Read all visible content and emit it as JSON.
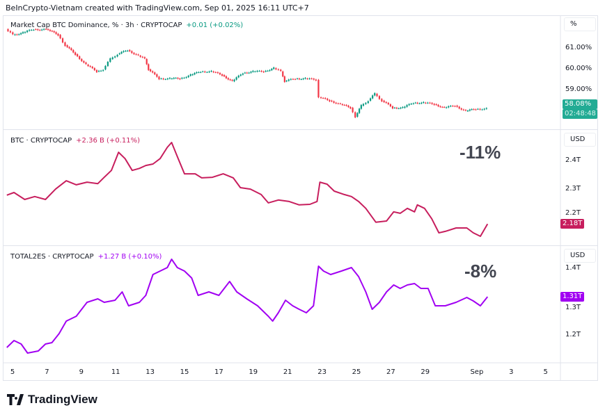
{
  "credit": "BeInCrypto-Vietnam created with TradingView.com, Sep 01, 2025 16:11 UTC+7",
  "logo_text": "TradingView",
  "colors": {
    "up": "#089981",
    "down": "#f23645",
    "btc": "#c71e5d",
    "total2es": "#a100f2",
    "dominance_badge": "#22ab94"
  },
  "chart_data": [
    {
      "type": "candlestick",
      "title": "Market Cap BTC Dominance, % · 3h · CRYPTOCAP",
      "change": "+0.01 (+0.02%)",
      "unit": "%",
      "yticks": [
        "61.00%",
        "60.00%",
        "59.00%"
      ],
      "ytick_values": [
        61,
        60,
        59
      ],
      "ylim": [
        57.13,
        62.57
      ],
      "last": "58.08%",
      "countdown": "02:48:48",
      "points": [
        [
          "08-04T16",
          61.9
        ],
        [
          "08-05T02",
          61.63
        ],
        [
          "08-05T16",
          61.73
        ],
        [
          "08-06T07",
          61.9
        ],
        [
          "08-07T03",
          61.87
        ],
        [
          "08-07T17",
          61.63
        ],
        [
          "08-08T03",
          61.13
        ],
        [
          "08-08T17",
          60.7
        ],
        [
          "08-09T08",
          60.2
        ],
        [
          "08-09T23",
          59.87
        ],
        [
          "08-10T08",
          59.97
        ],
        [
          "08-10T18",
          60.47
        ],
        [
          "08-11T04",
          60.7
        ],
        [
          "08-11T18",
          60.9
        ],
        [
          "08-12T09",
          60.63
        ],
        [
          "08-12T18",
          60.47
        ],
        [
          "08-12T23",
          59.97
        ],
        [
          "08-13T14",
          59.53
        ],
        [
          "08-14T05",
          59.53
        ],
        [
          "08-14T19",
          59.53
        ],
        [
          "08-15T10",
          59.7
        ],
        [
          "08-16T00",
          59.87
        ],
        [
          "08-16T15",
          59.87
        ],
        [
          "08-17T06",
          59.7
        ],
        [
          "08-17T20",
          59.4
        ],
        [
          "08-18T11",
          59.8
        ],
        [
          "08-19T01",
          59.87
        ],
        [
          "08-19T16",
          59.87
        ],
        [
          "08-20T06",
          60.03
        ],
        [
          "08-20T16",
          59.87
        ],
        [
          "08-20T21",
          59.4
        ],
        [
          "08-21T12",
          59.53
        ],
        [
          "08-22T02",
          59.53
        ],
        [
          "08-22T17",
          59.47
        ],
        [
          "08-22T21",
          58.63
        ],
        [
          "08-23T12",
          58.47
        ],
        [
          "08-24T03",
          58.3
        ],
        [
          "08-24T17",
          58.13
        ],
        [
          "08-25T00",
          57.7
        ],
        [
          "08-25T08",
          58.23
        ],
        [
          "08-25T18",
          58.47
        ],
        [
          "08-26T03",
          58.8
        ],
        [
          "08-26T13",
          58.47
        ],
        [
          "08-27T04",
          58.13
        ],
        [
          "08-27T18",
          58.13
        ],
        [
          "08-28T09",
          58.37
        ],
        [
          "08-28T23",
          58.37
        ],
        [
          "08-29T14",
          58.3
        ],
        [
          "08-30T04",
          58.13
        ],
        [
          "08-30T19",
          58.23
        ],
        [
          "08-31T10",
          57.97
        ],
        [
          "09-01T00",
          58.07
        ],
        [
          "09-01T15",
          58.08
        ]
      ]
    },
    {
      "type": "line",
      "title": "BTC · CRYPTOCAP",
      "change": "+2.36 B (+0.11%)",
      "unit": "USD",
      "yticks": [
        "2.4T",
        "2.3T",
        "2.2T"
      ],
      "ytick_values": [
        2.4,
        2.3,
        2.2
      ],
      "ylim": [
        2.108,
        2.504
      ],
      "last": "2.18T",
      "annotation": "-11%",
      "points": [
        [
          "08-04T16",
          2.28
        ],
        [
          "08-05T02",
          2.289
        ],
        [
          "08-05T17",
          2.265
        ],
        [
          "08-06T07",
          2.275
        ],
        [
          "08-06T22",
          2.265
        ],
        [
          "08-07T12",
          2.301
        ],
        [
          "08-08T03",
          2.33
        ],
        [
          "08-08T17",
          2.316
        ],
        [
          "08-09T08",
          2.325
        ],
        [
          "08-09T23",
          2.32
        ],
        [
          "08-10T08",
          2.342
        ],
        [
          "08-10T18",
          2.366
        ],
        [
          "08-11T04",
          2.429
        ],
        [
          "08-11T13",
          2.407
        ],
        [
          "08-11T23",
          2.366
        ],
        [
          "08-12T09",
          2.373
        ],
        [
          "08-12T18",
          2.383
        ],
        [
          "08-13T04",
          2.388
        ],
        [
          "08-13T14",
          2.407
        ],
        [
          "08-14T00",
          2.446
        ],
        [
          "08-14T06",
          2.463
        ],
        [
          "08-14T14",
          2.414
        ],
        [
          "08-15T00",
          2.354
        ],
        [
          "08-15T15",
          2.354
        ],
        [
          "08-16T00",
          2.34
        ],
        [
          "08-16T15",
          2.342
        ],
        [
          "08-17T06",
          2.354
        ],
        [
          "08-17T20",
          2.34
        ],
        [
          "08-18T06",
          2.306
        ],
        [
          "08-18T20",
          2.301
        ],
        [
          "08-19T11",
          2.282
        ],
        [
          "08-19T21",
          2.253
        ],
        [
          "08-20T11",
          2.263
        ],
        [
          "08-21T02",
          2.258
        ],
        [
          "08-21T16",
          2.246
        ],
        [
          "08-22T07",
          2.248
        ],
        [
          "08-22T17",
          2.258
        ],
        [
          "08-22T21",
          2.325
        ],
        [
          "08-23T07",
          2.318
        ],
        [
          "08-23T17",
          2.294
        ],
        [
          "08-24T07",
          2.282
        ],
        [
          "08-24T17",
          2.275
        ],
        [
          "08-25T03",
          2.258
        ],
        [
          "08-25T13",
          2.234
        ],
        [
          "08-26T03",
          2.186
        ],
        [
          "08-26T18",
          2.19
        ],
        [
          "08-27T04",
          2.222
        ],
        [
          "08-27T13",
          2.217
        ],
        [
          "08-27T23",
          2.234
        ],
        [
          "08-28T09",
          2.222
        ],
        [
          "08-28T13",
          2.246
        ],
        [
          "08-28T23",
          2.234
        ],
        [
          "08-29T09",
          2.198
        ],
        [
          "08-29T19",
          2.149
        ],
        [
          "08-30T04",
          2.154
        ],
        [
          "08-30T19",
          2.166
        ],
        [
          "08-31T10",
          2.166
        ],
        [
          "08-31T19",
          2.149
        ],
        [
          "09-01T05",
          2.137
        ],
        [
          "09-01T15",
          2.18
        ]
      ]
    },
    {
      "type": "line",
      "title": "TOTAL2ES · CRYPTOCAP",
      "change": "+1.27 B (+0.10%)",
      "unit": "USD",
      "yticks": [
        "1.4T",
        "1.3T",
        "1.2T"
      ],
      "ytick_values": [
        1.4,
        1.3,
        1.2
      ],
      "ylim": [
        1.124,
        1.454
      ],
      "last": "1.31T",
      "annotation": "-8%",
      "points": [
        [
          "08-04T16",
          1.164
        ],
        [
          "08-05T02",
          1.184
        ],
        [
          "08-05T12",
          1.174
        ],
        [
          "08-05T21",
          1.148
        ],
        [
          "08-06T12",
          1.154
        ],
        [
          "08-06T22",
          1.174
        ],
        [
          "08-07T07",
          1.178
        ],
        [
          "08-07T17",
          1.204
        ],
        [
          "08-08T03",
          1.24
        ],
        [
          "08-08T17",
          1.254
        ],
        [
          "08-09T08",
          1.294
        ],
        [
          "08-09T23",
          1.304
        ],
        [
          "08-10T08",
          1.294
        ],
        [
          "08-10T23",
          1.3
        ],
        [
          "08-11T09",
          1.324
        ],
        [
          "08-11T18",
          1.284
        ],
        [
          "08-12T09",
          1.294
        ],
        [
          "08-12T18",
          1.314
        ],
        [
          "08-13T04",
          1.374
        ],
        [
          "08-13T14",
          1.384
        ],
        [
          "08-14T00",
          1.394
        ],
        [
          "08-14T06",
          1.418
        ],
        [
          "08-14T14",
          1.394
        ],
        [
          "08-15T00",
          1.384
        ],
        [
          "08-15T10",
          1.364
        ],
        [
          "08-15T19",
          1.314
        ],
        [
          "08-16T10",
          1.324
        ],
        [
          "08-17T00",
          1.314
        ],
        [
          "08-17T15",
          1.354
        ],
        [
          "08-18T01",
          1.324
        ],
        [
          "08-18T15",
          1.304
        ],
        [
          "08-19T06",
          1.284
        ],
        [
          "08-19T21",
          1.254
        ],
        [
          "08-20T03",
          1.24
        ],
        [
          "08-20T11",
          1.264
        ],
        [
          "08-20T21",
          1.3
        ],
        [
          "08-21T07",
          1.284
        ],
        [
          "08-21T16",
          1.274
        ],
        [
          "08-22T02",
          1.264
        ],
        [
          "08-22T12",
          1.284
        ],
        [
          "08-22T19",
          1.398
        ],
        [
          "08-23T02",
          1.384
        ],
        [
          "08-23T12",
          1.374
        ],
        [
          "08-24T03",
          1.384
        ],
        [
          "08-24T17",
          1.394
        ],
        [
          "08-25T03",
          1.368
        ],
        [
          "08-25T13",
          1.324
        ],
        [
          "08-25T22",
          1.274
        ],
        [
          "08-26T08",
          1.294
        ],
        [
          "08-26T18",
          1.324
        ],
        [
          "08-27T04",
          1.344
        ],
        [
          "08-27T13",
          1.334
        ],
        [
          "08-27T23",
          1.344
        ],
        [
          "08-28T09",
          1.348
        ],
        [
          "08-28T18",
          1.334
        ],
        [
          "08-29T04",
          1.334
        ],
        [
          "08-29T14",
          1.284
        ],
        [
          "08-30T04",
          1.284
        ],
        [
          "08-30T19",
          1.294
        ],
        [
          "08-31T10",
          1.308
        ],
        [
          "08-31T19",
          1.298
        ],
        [
          "09-01T05",
          1.284
        ],
        [
          "09-01T15",
          1.31
        ]
      ]
    }
  ],
  "xaxis": {
    "ticks": [
      [
        "08-05",
        "5"
      ],
      [
        "08-07",
        "7"
      ],
      [
        "08-09",
        "9"
      ],
      [
        "08-11",
        "11"
      ],
      [
        "08-13",
        "13"
      ],
      [
        "08-15",
        "15"
      ],
      [
        "08-17",
        "17"
      ],
      [
        "08-19",
        "19"
      ],
      [
        "08-21",
        "21"
      ],
      [
        "08-23",
        "23"
      ],
      [
        "08-25",
        "25"
      ],
      [
        "08-27",
        "27"
      ],
      [
        "08-29",
        "29"
      ],
      [
        "09-01",
        "Sep"
      ],
      [
        "09-03",
        "3"
      ],
      [
        "09-05",
        "5"
      ]
    ]
  }
}
